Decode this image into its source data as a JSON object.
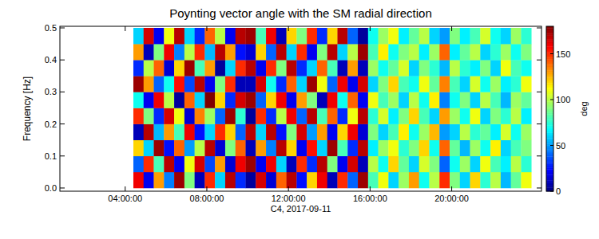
{
  "chart_data": {
    "type": "heatmap",
    "title": "Poynting vector angle with the SM radial direction",
    "x_label": "C4, 2017-09-11",
    "y_label": "Frequency [Hz]",
    "xlim": [
      0.8,
      24.4
    ],
    "xticks": [
      {
        "value": 4,
        "label": "04:00:00"
      },
      {
        "value": 8,
        "label": "08:00:00"
      },
      {
        "value": 12,
        "label": "12:00:00"
      },
      {
        "value": 16,
        "label": "16:00:00"
      },
      {
        "value": 20,
        "label": "20:00:00"
      }
    ],
    "ylim": [
      -0.01,
      0.505
    ],
    "yticks": [
      {
        "value": 0,
        "label": "0.0"
      },
      0.1,
      0.2,
      0.3,
      0.4,
      0.5
    ],
    "x_edges": [
      4.4,
      4.9,
      5.4,
      5.9,
      6.4,
      6.9,
      7.4,
      7.9,
      8.4,
      8.9,
      9.4,
      9.9,
      10.4,
      10.9,
      11.4,
      11.9,
      12.4,
      12.9,
      13.4,
      13.9,
      14.4,
      14.9,
      15.4,
      15.9,
      16.4,
      16.9,
      17.4,
      17.9,
      18.4,
      18.9,
      19.4,
      19.9,
      20.4,
      20.9,
      21.4,
      21.9,
      22.4,
      22.9,
      23.4,
      23.9
    ],
    "y_edges": [
      0,
      0.05,
      0.1,
      0.15,
      0.2,
      0.25,
      0.3,
      0.35,
      0.4,
      0.45,
      0.5
    ],
    "cells": [
      [
        160,
        20,
        130,
        45,
        175,
        90,
        10,
        150,
        60,
        170,
        30,
        5,
        165,
        15,
        140,
        170,
        25,
        120,
        160,
        10,
        150,
        40,
        175,
        80,
        110,
        60,
        95,
        130,
        70,
        100,
        150,
        90,
        60,
        120,
        75,
        100,
        55,
        85,
        110
      ],
      [
        40,
        150,
        80,
        170,
        20,
        110,
        165,
        35,
        130,
        15,
        160,
        175,
        20,
        160,
        60,
        10,
        150,
        30,
        170,
        90,
        20,
        165,
        10,
        100,
        70,
        120,
        85,
        60,
        105,
        90,
        40,
        70,
        95,
        60,
        110,
        80,
        65,
        100,
        75
      ],
      [
        120,
        60,
        175,
        25,
        140,
        50,
        100,
        170,
        15,
        90,
        140,
        10,
        130,
        45,
        170,
        120,
        20,
        155,
        60,
        175,
        80,
        30,
        170,
        65,
        95,
        110,
        75,
        90,
        120,
        70,
        140,
        85,
        55,
        95,
        70,
        115,
        60,
        80,
        90
      ],
      [
        10,
        170,
        55,
        130,
        80,
        160,
        25,
        60,
        150,
        120,
        40,
        170,
        60,
        170,
        25,
        90,
        165,
        50,
        130,
        20,
        120,
        160,
        15,
        90,
        60,
        80,
        115,
        70,
        95,
        125,
        50,
        60,
        100,
        75,
        85,
        65,
        105,
        70,
        95
      ],
      [
        150,
        90,
        30,
        165,
        110,
        15,
        135,
        95,
        40,
        175,
        75,
        5,
        150,
        30,
        100,
        160,
        40,
        170,
        80,
        140,
        30,
        110,
        170,
        75,
        105,
        65,
        90,
        120,
        80,
        60,
        130,
        95,
        70,
        110,
        60,
        90,
        75,
        100,
        65
      ],
      [
        70,
        20,
        160,
        100,
        5,
        140,
        60,
        180,
        120,
        30,
        165,
        175,
        40,
        120,
        160,
        20,
        130,
        90,
        10,
        160,
        70,
        140,
        20,
        110,
        80,
        95,
        60,
        100,
        70,
        115,
        45,
        70,
        90,
        60,
        100,
        80,
        55,
        95,
        85
      ],
      [
        175,
        130,
        40,
        70,
        155,
        35,
        170,
        20,
        90,
        150,
        10,
        10,
        165,
        70,
        30,
        140,
        60,
        175,
        110,
        40,
        160,
        20,
        165,
        60,
        90,
        120,
        80,
        70,
        110,
        85,
        135,
        80,
        60,
        105,
        70,
        95,
        65,
        75,
        110
      ],
      [
        30,
        100,
        140,
        15,
        120,
        175,
        80,
        130,
        5,
        60,
        150,
        170,
        20,
        150,
        90,
        170,
        30,
        60,
        140,
        80,
        10,
        130,
        10,
        95,
        70,
        85,
        105,
        60,
        90,
        75,
        55,
        100,
        75,
        65,
        90,
        60,
        110,
        80,
        70
      ],
      [
        130,
        10,
        90,
        160,
        45,
        100,
        150,
        55,
        170,
        130,
        25,
        15,
        120,
        40,
        170,
        60,
        150,
        20,
        90,
        170,
        60,
        100,
        175,
        80,
        115,
        70,
        90,
        100,
        65,
        95,
        140,
        65,
        85,
        100,
        60,
        75,
        95,
        70,
        90
      ],
      [
        60,
        165,
        20,
        110,
        170,
        60,
        30,
        140,
        100,
        20,
        170,
        175,
        80,
        160,
        10,
        120,
        90,
        150,
        30,
        120,
        170,
        40,
        5,
        70,
        95,
        110,
        65,
        85,
        100,
        60,
        50,
        90,
        65,
        80,
        105,
        70,
        60,
        95,
        75
      ]
    ],
    "colorbar": {
      "range": [
        0,
        180
      ],
      "ticks": [
        0,
        50,
        100,
        150
      ],
      "label": "deg"
    }
  }
}
